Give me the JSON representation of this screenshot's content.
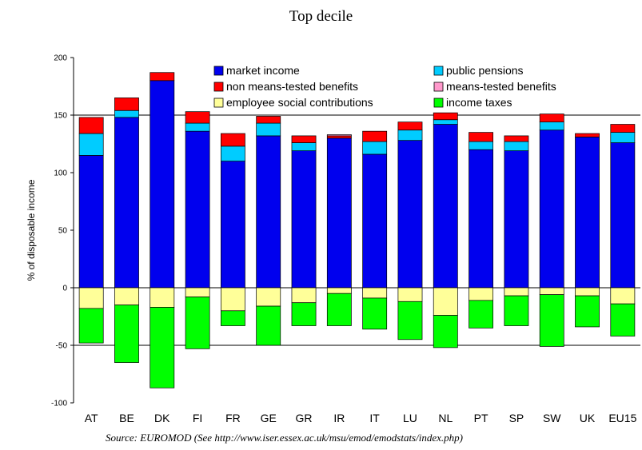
{
  "chart_data": {
    "type": "bar",
    "stacked": true,
    "title": "Top decile",
    "ylabel": "% of disposable income",
    "xlabel": "",
    "ylim": [
      -100,
      200
    ],
    "yticks": [
      -100,
      -50,
      0,
      50,
      100,
      150,
      200
    ],
    "grid": "horizontal at 150 and -50",
    "legend_position": "top (inside plot)",
    "categories": [
      "AT",
      "BE",
      "DK",
      "FI",
      "FR",
      "GE",
      "GR",
      "IR",
      "IT",
      "LU",
      "NL",
      "PT",
      "SP",
      "SW",
      "UK",
      "EU15"
    ],
    "series": [
      {
        "name": "market income",
        "color": "#0000ee",
        "values": [
          115,
          148,
          180,
          136,
          110,
          132,
          119,
          130,
          116,
          128,
          142,
          120,
          119,
          137,
          131,
          126
        ]
      },
      {
        "name": "public pensions",
        "color": "#00ccff",
        "values": [
          19,
          6,
          0,
          7,
          13,
          11,
          7,
          0,
          11,
          9,
          4,
          7,
          8,
          7,
          0,
          9
        ]
      },
      {
        "name": "non means-tested benefits",
        "color": "#ff0000",
        "values": [
          14,
          11,
          7,
          10,
          11,
          6,
          6,
          2,
          9,
          7,
          6,
          8,
          5,
          7,
          3,
          7
        ]
      },
      {
        "name": "means-tested benefits",
        "color": "#ff99cc",
        "values": [
          0,
          0,
          0,
          0,
          0,
          0,
          0,
          1,
          0,
          0,
          0,
          0,
          0,
          0,
          0,
          0
        ]
      },
      {
        "name": "employee social contributions",
        "color": "#ffff99",
        "values": [
          -18,
          -15,
          -17,
          -8,
          -20,
          -16,
          -13,
          -5,
          -9,
          -12,
          -24,
          -11,
          -7,
          -6,
          -7,
          -14
        ]
      },
      {
        "name": "income taxes",
        "color": "#00ff00",
        "values": [
          -30,
          -50,
          -70,
          -45,
          -13,
          -34,
          -20,
          -28,
          -27,
          -33,
          -28,
          -24,
          -26,
          -45,
          -27,
          -28
        ]
      }
    ],
    "source": "Source: EUROMOD (See http://www.iser.essex.ac.uk/msu/emod/emodstats/index.php)"
  }
}
